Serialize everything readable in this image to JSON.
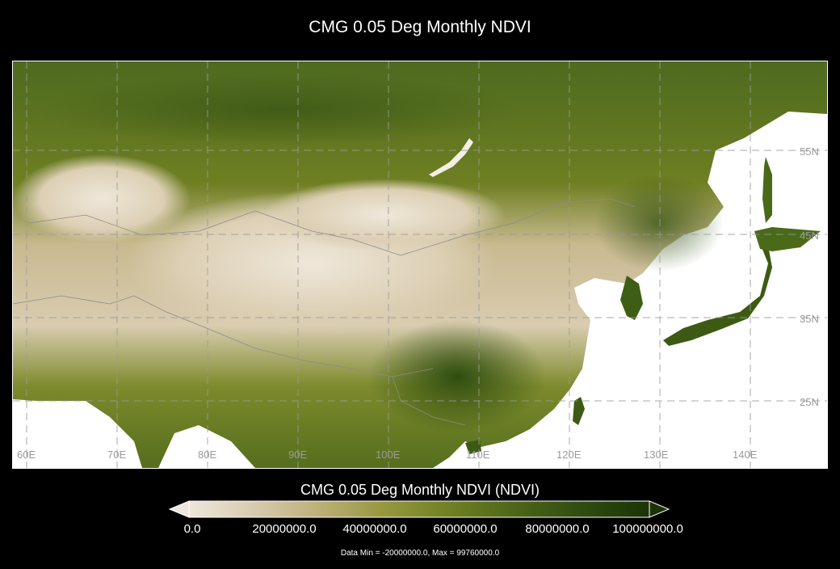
{
  "title": "CMG 0.05 Deg Monthly NDVI",
  "map": {
    "lon_labels": [
      "60E",
      "70E",
      "80E",
      "90E",
      "100E",
      "110E",
      "120E",
      "130E",
      "140E"
    ],
    "lat_labels": [
      "55N",
      "45N",
      "35N",
      "25N"
    ],
    "colors": {
      "ocean": "#ffffff",
      "grid": "#9a9a9a",
      "border": "#8c8c8c",
      "low": "#e7dccd",
      "mid": "#6f7f22",
      "high": "#1f3a0a"
    }
  },
  "colorbar": {
    "title": "CMG 0.05 Deg Monthly NDVI (NDVI)",
    "tick_labels": [
      "0.0",
      "20000000.0",
      "40000000.0",
      "60000000.0",
      "80000000.0",
      "100000000.0"
    ],
    "stops": [
      "#eee6db",
      "#d8cbb0",
      "#bdb07a",
      "#96983f",
      "#6f7f22",
      "#4d6519",
      "#2f4d10",
      "#1a3307"
    ]
  },
  "data_range": "Data Min = -20000000.0, Max = 99760000.0"
}
